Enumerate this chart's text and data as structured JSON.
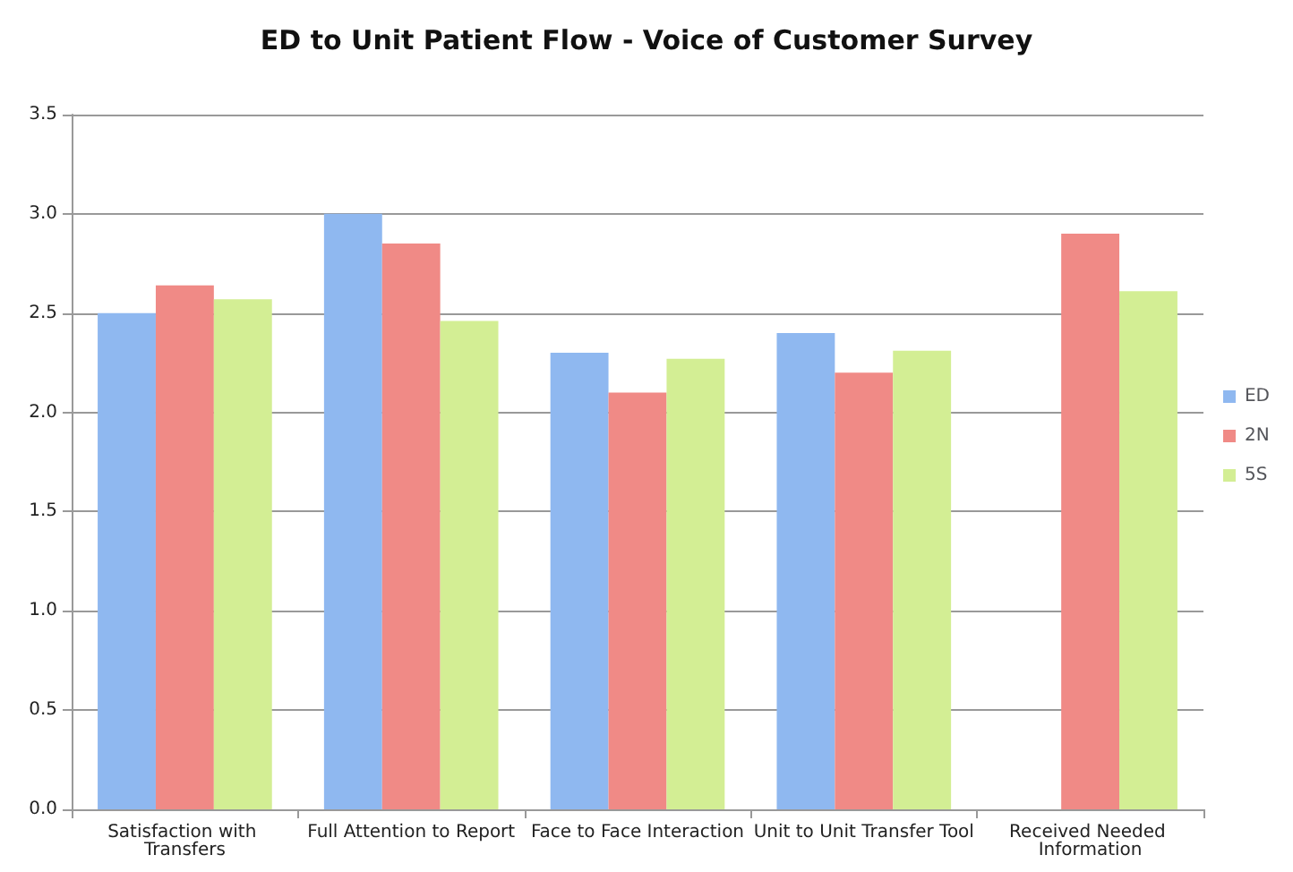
{
  "chart_data": {
    "type": "bar",
    "title": "ED to Unit Patient Flow - Voice of Customer Survey",
    "categories": [
      "Satisfaction with Transfers",
      "Full Attention to Report",
      "Face to Face Interaction",
      "Unit to Unit Transfer Tool",
      "Received Needed Information"
    ],
    "series": [
      {
        "name": "ED",
        "color": "#8fb8f0",
        "values": [
          2.5,
          3.0,
          2.3,
          2.4,
          null
        ]
      },
      {
        "name": "2N",
        "color": "#f08a86",
        "values": [
          2.64,
          2.85,
          2.1,
          2.2,
          2.9
        ]
      },
      {
        "name": "5S",
        "color": "#d3ee94",
        "values": [
          2.57,
          2.46,
          2.27,
          2.31,
          2.61
        ]
      }
    ],
    "ylim": [
      0,
      3.5
    ],
    "yticks": [
      {
        "value": 0,
        "label": "0.0"
      },
      0.5,
      {
        "value": 1,
        "label": "1.0"
      },
      1.5,
      {
        "value": 2,
        "label": "2.0"
      },
      2.5,
      {
        "value": 3,
        "label": "3.0"
      },
      3.5
    ],
    "grid": "y",
    "legend": "right"
  }
}
